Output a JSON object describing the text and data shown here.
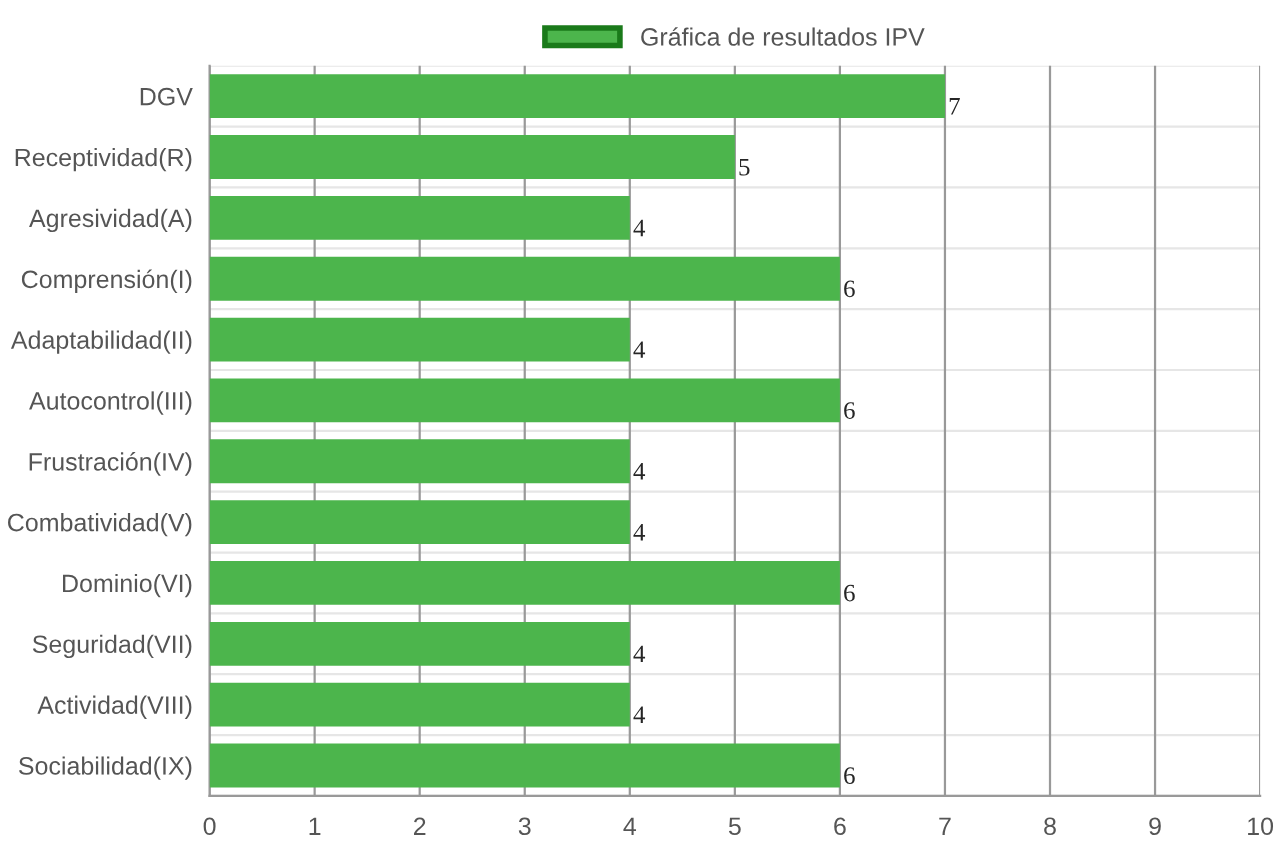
{
  "chart_data": {
    "type": "bar",
    "orientation": "horizontal",
    "categories": [
      "DGV",
      "Receptividad(R)",
      "Agresividad(A)",
      "Comprensión(I)",
      "Adaptabilidad(II)",
      "Autocontrol(III)",
      "Frustración(IV)",
      "Combatividad(V)",
      "Dominio(VI)",
      "Seguridad(VII)",
      "Actividad(VIII)",
      "Sociabilidad(IX)"
    ],
    "series": [
      {
        "name": "Gráfica de resultados IPV",
        "color": "#4cb54c",
        "values": [
          7,
          5,
          4,
          6,
          4,
          6,
          4,
          4,
          6,
          4,
          4,
          6
        ]
      }
    ],
    "xlim": [
      0,
      10
    ],
    "xticks": [
      0,
      1,
      2,
      3,
      4,
      5,
      6,
      7,
      8,
      9,
      10
    ],
    "grid": true,
    "legend": "top",
    "data_labels": true
  }
}
